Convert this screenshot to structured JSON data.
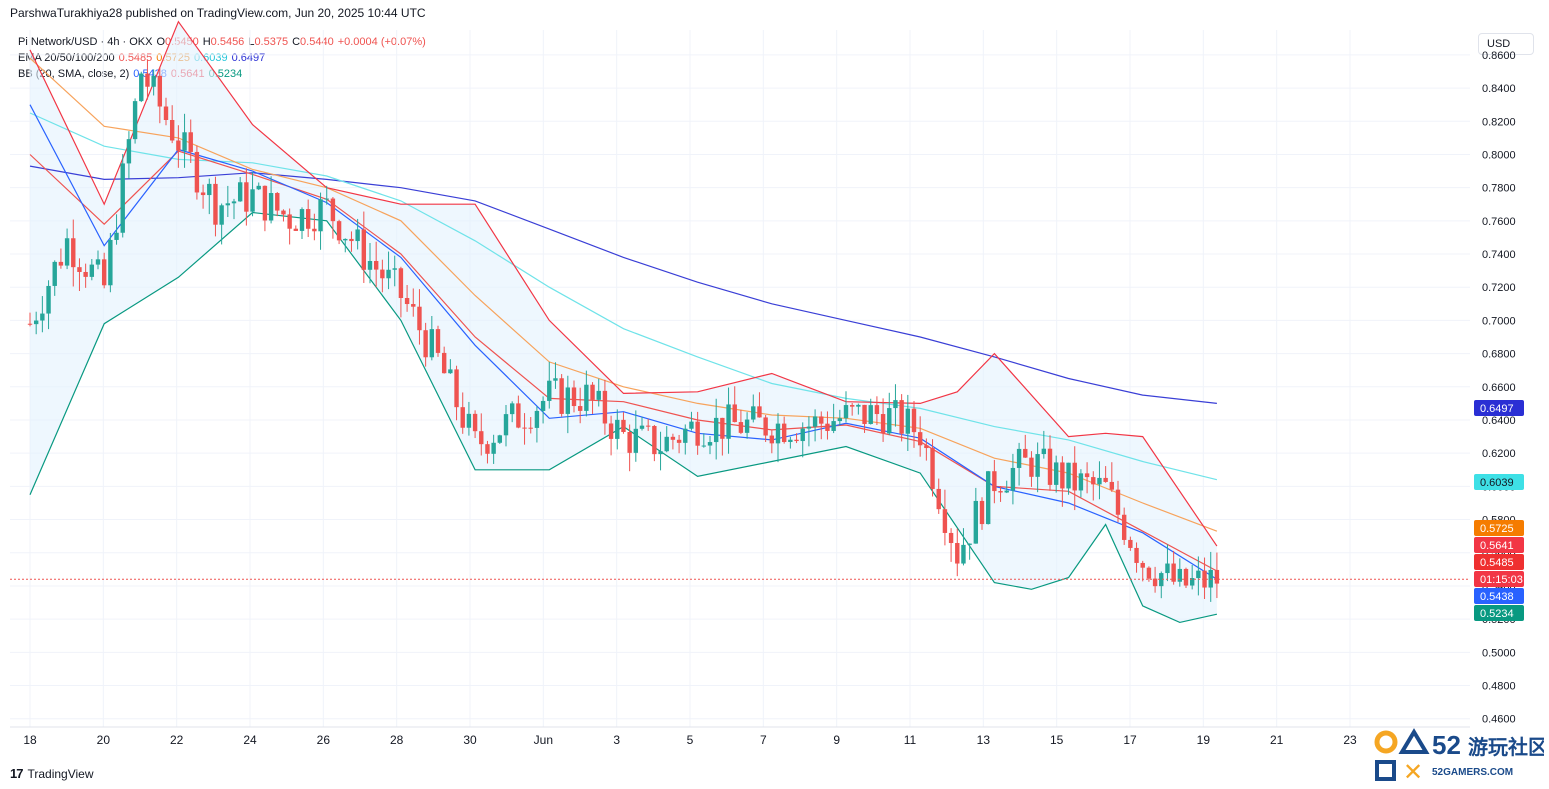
{
  "header": {
    "publisher_line": "ParshwaTurakhiya28 published on TradingView.com, Jun 20, 2025 10:44 UTC"
  },
  "legend": {
    "symbol": {
      "label": "Pi Network/USD · 4h · OKX",
      "o_label": "O",
      "o": "0.5450",
      "h_label": "H",
      "h": "0.5456",
      "l_label": "L",
      "l": "0.5375",
      "c_label": "C",
      "c": "0.5440",
      "chg": "+0.0004 (+0.07%)"
    },
    "ema": {
      "label": "EMA 20/50/100/200",
      "v20": "0.5485",
      "v50": "0.5725",
      "v100": "0.6039",
      "v200": "0.6497"
    },
    "bb": {
      "label": "BB (20, SMA, close, 2)",
      "basis": "0.5438",
      "upper": "0.5641",
      "lower": "0.5234"
    }
  },
  "currency_button": "USD",
  "footer": {
    "brand": "TradingView",
    "mark": "17"
  },
  "watermark": {
    "number": "52",
    "cn": "游玩社区",
    "site": "52GAMERS.COM"
  },
  "colors": {
    "up": "#26a69a",
    "down": "#ef5350",
    "ema20": "#ef5350",
    "ema50": "#f7a35c",
    "ema100": "#6fe3e9",
    "ema200": "#3a3fd6",
    "bb_upper": "#f23645",
    "bb_basis": "#2962ff",
    "bb_lower": "#089981",
    "bb_fill": "#e3f2fd",
    "grid": "#f0f3fa"
  },
  "chart_data": {
    "type": "candlestick",
    "symbol": "Pi Network/USD",
    "timeframe": "4h",
    "exchange": "OKX",
    "ylim": [
      0.455,
      0.875
    ],
    "y_ticks": [
      "0.8600",
      "0.8400",
      "0.8200",
      "0.8000",
      "0.7800",
      "0.7600",
      "0.7400",
      "0.7200",
      "0.7000",
      "0.6800",
      "0.6600",
      "0.6400",
      "0.6200",
      "0.6000",
      "0.5800",
      "0.5600",
      "0.5400",
      "0.5200",
      "0.5000",
      "0.4800",
      "0.4600"
    ],
    "x_ticks": [
      "18",
      "20",
      "22",
      "24",
      "26",
      "28",
      "30",
      "Jun",
      "3",
      "5",
      "7",
      "9",
      "11",
      "13",
      "15",
      "17",
      "19",
      "21",
      "23"
    ],
    "last_price": 0.544,
    "countdown": "01:15:03",
    "price_labels": [
      {
        "name": "EMA 200",
        "value": "0.6497",
        "color": "#2a2fd4"
      },
      {
        "name": "EMA 100",
        "value": "0.6039",
        "color": "#3ee0e6"
      },
      {
        "name": "EMA 50",
        "value": "0.5725",
        "color": "#f57c00"
      },
      {
        "name": "BB upper",
        "value": "0.5641",
        "color": "#f23645"
      },
      {
        "name": "EMA 20",
        "value": "0.5485",
        "color": "#ef3030"
      },
      {
        "name": "BB basis",
        "value": "0.5438",
        "color": "#2962ff"
      },
      {
        "name": "BB lower",
        "value": "0.5234",
        "color": "#089981"
      }
    ],
    "series": [
      {
        "name": "EMA 200",
        "points": [
          [
            0,
            0.793
          ],
          [
            2,
            0.785
          ],
          [
            4,
            0.786
          ],
          [
            6,
            0.789
          ],
          [
            8,
            0.785
          ],
          [
            10,
            0.78
          ],
          [
            12,
            0.772
          ],
          [
            14,
            0.755
          ],
          [
            16,
            0.738
          ],
          [
            18,
            0.723
          ],
          [
            20,
            0.71
          ],
          [
            22,
            0.7
          ],
          [
            24,
            0.69
          ],
          [
            26,
            0.678
          ],
          [
            28,
            0.665
          ],
          [
            30,
            0.655
          ],
          [
            32,
            0.65
          ]
        ]
      },
      {
        "name": "EMA 100",
        "points": [
          [
            0,
            0.825
          ],
          [
            2,
            0.805
          ],
          [
            4,
            0.797
          ],
          [
            6,
            0.795
          ],
          [
            8,
            0.787
          ],
          [
            10,
            0.772
          ],
          [
            12,
            0.748
          ],
          [
            14,
            0.72
          ],
          [
            16,
            0.695
          ],
          [
            18,
            0.678
          ],
          [
            20,
            0.662
          ],
          [
            22,
            0.653
          ],
          [
            24,
            0.647
          ],
          [
            26,
            0.636
          ],
          [
            28,
            0.628
          ],
          [
            30,
            0.615
          ],
          [
            32,
            0.604
          ]
        ]
      },
      {
        "name": "EMA 50",
        "points": [
          [
            0,
            0.858
          ],
          [
            2,
            0.817
          ],
          [
            4,
            0.81
          ],
          [
            6,
            0.791
          ],
          [
            8,
            0.78
          ],
          [
            10,
            0.76
          ],
          [
            12,
            0.715
          ],
          [
            14,
            0.675
          ],
          [
            16,
            0.66
          ],
          [
            18,
            0.65
          ],
          [
            20,
            0.643
          ],
          [
            22,
            0.641
          ],
          [
            24,
            0.635
          ],
          [
            26,
            0.617
          ],
          [
            28,
            0.608
          ],
          [
            30,
            0.59
          ],
          [
            32,
            0.573
          ]
        ]
      },
      {
        "name": "EMA 20",
        "points": [
          [
            0,
            0.8
          ],
          [
            2,
            0.758
          ],
          [
            4,
            0.802
          ],
          [
            6,
            0.788
          ],
          [
            8,
            0.773
          ],
          [
            10,
            0.74
          ],
          [
            12,
            0.69
          ],
          [
            14,
            0.653
          ],
          [
            16,
            0.651
          ],
          [
            18,
            0.64
          ],
          [
            20,
            0.634
          ],
          [
            22,
            0.637
          ],
          [
            24,
            0.627
          ],
          [
            26,
            0.6
          ],
          [
            28,
            0.597
          ],
          [
            30,
            0.573
          ],
          [
            32,
            0.549
          ]
        ]
      },
      {
        "name": "BB upper",
        "points": [
          [
            0,
            0.863
          ],
          [
            2,
            0.77
          ],
          [
            4,
            0.88
          ],
          [
            6,
            0.818
          ],
          [
            8,
            0.78
          ],
          [
            10,
            0.77
          ],
          [
            12,
            0.77
          ],
          [
            14,
            0.7
          ],
          [
            16,
            0.656
          ],
          [
            18,
            0.657
          ],
          [
            20,
            0.668
          ],
          [
            22,
            0.651
          ],
          [
            24,
            0.65
          ],
          [
            25,
            0.657
          ],
          [
            26,
            0.68
          ],
          [
            28,
            0.63
          ],
          [
            29,
            0.632
          ],
          [
            30,
            0.63
          ],
          [
            32,
            0.564
          ]
        ]
      },
      {
        "name": "BB basis",
        "points": [
          [
            0,
            0.83
          ],
          [
            2,
            0.745
          ],
          [
            4,
            0.803
          ],
          [
            6,
            0.79
          ],
          [
            8,
            0.771
          ],
          [
            10,
            0.738
          ],
          [
            12,
            0.685
          ],
          [
            14,
            0.641
          ],
          [
            16,
            0.645
          ],
          [
            18,
            0.632
          ],
          [
            20,
            0.628
          ],
          [
            22,
            0.638
          ],
          [
            24,
            0.629
          ],
          [
            26,
            0.6
          ],
          [
            28,
            0.59
          ],
          [
            30,
            0.572
          ],
          [
            32,
            0.544
          ]
        ]
      },
      {
        "name": "BB lower",
        "points": [
          [
            0,
            0.595
          ],
          [
            2,
            0.698
          ],
          [
            4,
            0.726
          ],
          [
            6,
            0.765
          ],
          [
            8,
            0.76
          ],
          [
            10,
            0.7
          ],
          [
            12,
            0.61
          ],
          [
            14,
            0.61
          ],
          [
            16,
            0.636
          ],
          [
            18,
            0.606
          ],
          [
            20,
            0.615
          ],
          [
            22,
            0.624
          ],
          [
            24,
            0.608
          ],
          [
            26,
            0.542
          ],
          [
            27,
            0.538
          ],
          [
            28,
            0.545
          ],
          [
            29,
            0.577
          ],
          [
            30,
            0.528
          ],
          [
            31,
            0.518
          ],
          [
            32,
            0.523
          ]
        ]
      },
      {
        "name": "Close",
        "points": [
          [
            0,
            0.698
          ],
          [
            1,
            0.748
          ],
          [
            2,
            0.72
          ],
          [
            3,
            0.85
          ],
          [
            4,
            0.808
          ],
          [
            5,
            0.77
          ],
          [
            6,
            0.775
          ],
          [
            7,
            0.762
          ],
          [
            8,
            0.768
          ],
          [
            9,
            0.74
          ],
          [
            10,
            0.715
          ],
          [
            11,
            0.676
          ],
          [
            12,
            0.625
          ],
          [
            13,
            0.64
          ],
          [
            14,
            0.654
          ],
          [
            15,
            0.654
          ],
          [
            16,
            0.63
          ],
          [
            17,
            0.625
          ],
          [
            18,
            0.637
          ],
          [
            19,
            0.637
          ],
          [
            20,
            0.637
          ],
          [
            21,
            0.637
          ],
          [
            22,
            0.642
          ],
          [
            23,
            0.644
          ],
          [
            24,
            0.633
          ],
          [
            25,
            0.56
          ],
          [
            26,
            0.604
          ],
          [
            27,
            0.615
          ],
          [
            28,
            0.603
          ],
          [
            29,
            0.598
          ],
          [
            30,
            0.555
          ],
          [
            31,
            0.54
          ],
          [
            32,
            0.544
          ]
        ]
      }
    ]
  }
}
